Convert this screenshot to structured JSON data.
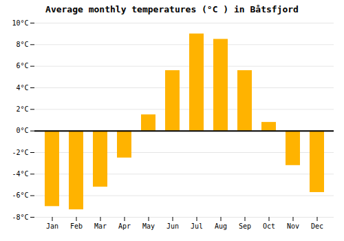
{
  "chart_data": {
    "type": "bar",
    "title": "Average monthly temperatures (°C ) in Båtsfjord",
    "categories": [
      "Jan",
      "Feb",
      "Mar",
      "Apr",
      "May",
      "Jun",
      "Jul",
      "Aug",
      "Sep",
      "Oct",
      "Nov",
      "Dec"
    ],
    "values": [
      -7.0,
      -7.3,
      -5.2,
      -2.5,
      1.5,
      5.6,
      9.0,
      8.5,
      5.6,
      0.8,
      -3.2,
      -5.7
    ],
    "color": "#FFB300",
    "ylim": [
      -8,
      10
    ],
    "yticks": [
      {
        "value": -8,
        "label": "-8°C"
      },
      {
        "value": -6,
        "label": "-6°C"
      },
      {
        "value": -4,
        "label": "-4°C"
      },
      {
        "value": -2,
        "label": "-2°C"
      },
      {
        "value": 0,
        "label": "0°C"
      },
      {
        "value": 2,
        "label": "2°C"
      },
      {
        "value": 4,
        "label": "4°C"
      },
      {
        "value": 6,
        "label": "6°C"
      },
      {
        "value": 8,
        "label": "8°C"
      },
      {
        "value": 10,
        "label": "10°C"
      }
    ],
    "grid": true
  }
}
